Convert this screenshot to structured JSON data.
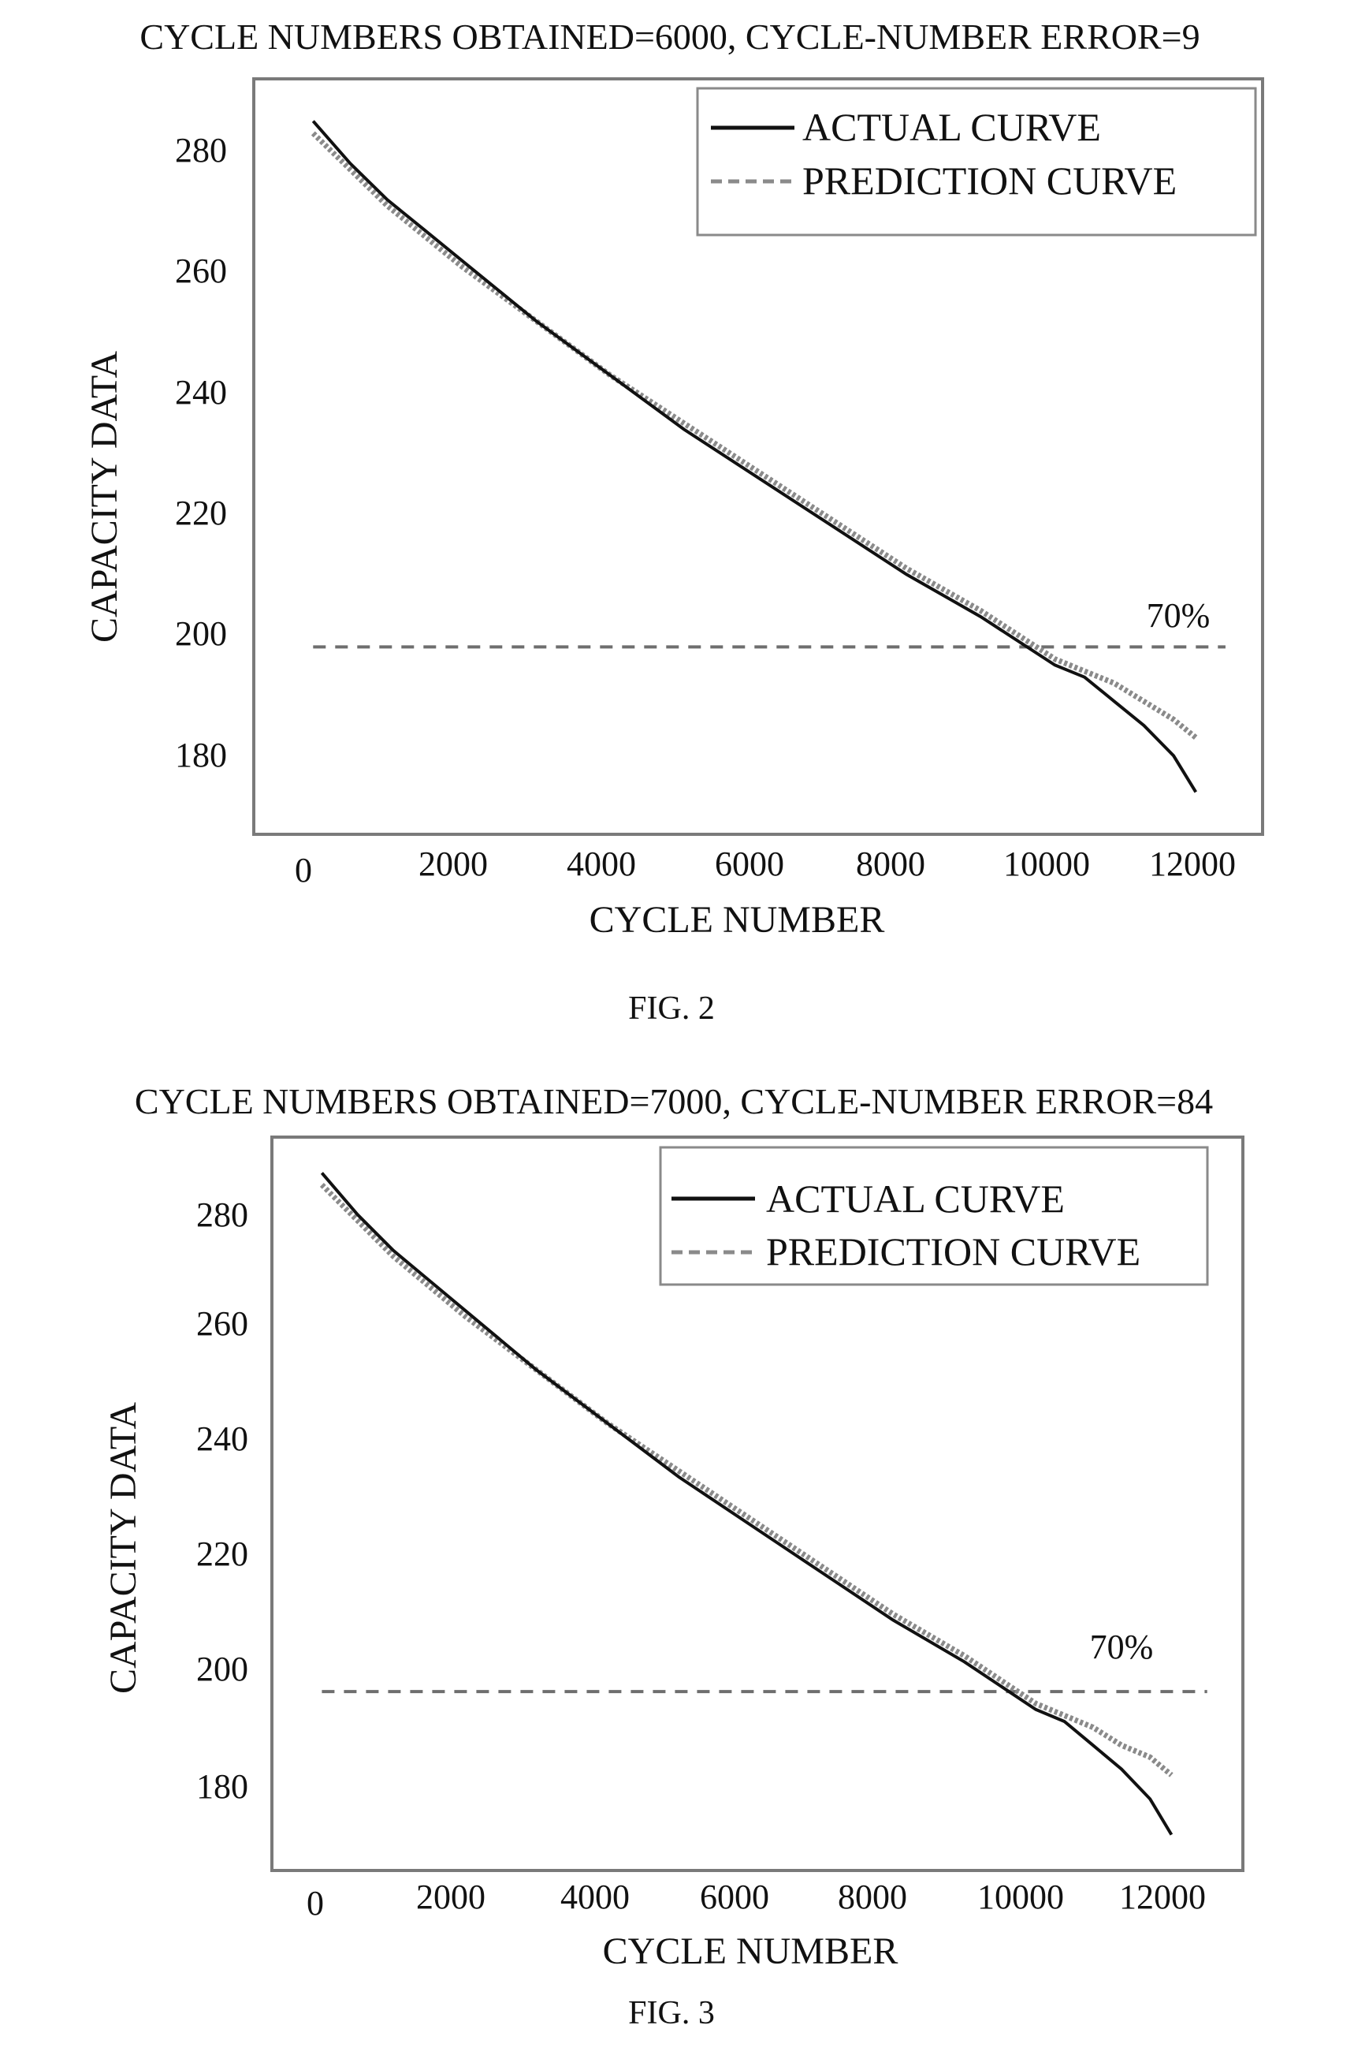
{
  "colors": {
    "axis": "#7a7a7a",
    "actual": "#111111",
    "prediction": "#8a8a8a",
    "threshold": "#6e6e6e"
  },
  "figures": [
    {
      "caption": "FIG. 2",
      "chart_data": {
        "type": "line",
        "title": "CYCLE NUMBERS OBTAINED=6000, CYCLE-NUMBER ERROR=9",
        "xlabel": "CYCLE NUMBER",
        "ylabel": "CAPACITY DATA",
        "xlim": [
          -800,
          12800
        ],
        "ylim": [
          165,
          290
        ],
        "xticks": [
          0,
          2000,
          4000,
          6000,
          8000,
          10000,
          12000
        ],
        "xtick_labels": [
          "0",
          "2000",
          "4000",
          "6000",
          "8000",
          "10000",
          "12000"
        ],
        "yticks": [
          180,
          200,
          220,
          240,
          260,
          280
        ],
        "ytick_labels": [
          "180",
          "200",
          "220",
          "240",
          "260",
          "280"
        ],
        "legend": [
          "ACTUAL CURVE",
          "PREDICTION CURVE"
        ],
        "legend_position": "top-right",
        "threshold": {
          "y": 196,
          "x_start": 0,
          "x_end": 12300,
          "label": "70%"
        },
        "series": [
          {
            "name": "ACTUAL CURVE",
            "style": "solid",
            "x": [
              0,
              500,
              1000,
              1500,
              2000,
              3000,
              4000,
              5000,
              6000,
              7000,
              8000,
              9000,
              10000,
              10400,
              10800,
              11200,
              11600,
              11900
            ],
            "y": [
              283,
              276,
              270,
              265,
              260,
              250,
              241,
              232,
              224,
              216,
              208,
              201,
              193,
              191,
              187,
              183,
              178,
              172
            ]
          },
          {
            "name": "PREDICTION CURVE",
            "style": "dashed",
            "x": [
              0,
              500,
              1000,
              1500,
              2000,
              3000,
              4000,
              5000,
              6000,
              7000,
              8000,
              9000,
              10000,
              10400,
              10800,
              11200,
              11600,
              11900
            ],
            "y": [
              281,
              275,
              269,
              264,
              259,
              250,
              241,
              233,
              225,
              217,
              209,
              202,
              194,
              192,
              190,
              187,
              184,
              181
            ]
          }
        ]
      }
    },
    {
      "caption": "FIG. 3",
      "chart_data": {
        "type": "line",
        "title": "CYCLE NUMBERS OBTAINED=7000, CYCLE-NUMBER ERROR=84",
        "xlabel": "CYCLE NUMBER",
        "ylabel": "CAPACITY DATA",
        "xlim": [
          -700,
          12900
        ],
        "ylim": [
          166,
          289
        ],
        "xticks": [
          0,
          2000,
          4000,
          6000,
          8000,
          10000,
          12000
        ],
        "xtick_labels": [
          "0",
          "2000",
          "4000",
          "6000",
          "8000",
          "10000",
          "12000"
        ],
        "yticks": [
          180,
          200,
          220,
          240,
          260,
          280
        ],
        "ytick_labels": [
          "180",
          "200",
          "220",
          "240",
          "260",
          "280"
        ],
        "legend": [
          "ACTUAL CURVE",
          "PREDICTION CURVE"
        ],
        "legend_position": "top-right",
        "threshold": {
          "y": 196,
          "x_start": 0,
          "x_end": 12400,
          "label": "70%"
        },
        "series": [
          {
            "name": "ACTUAL CURVE",
            "style": "solid",
            "x": [
              0,
              500,
              1000,
              1500,
              2000,
              3000,
              4000,
              5000,
              6000,
              7000,
              8000,
              9000,
              10000,
              10400,
              10800,
              11200,
              11600,
              11900
            ],
            "y": [
              283,
              276,
              270,
              265,
              260,
              250,
              241,
              232,
              224,
              216,
              208,
              201,
              193,
              191,
              187,
              183,
              178,
              172
            ]
          },
          {
            "name": "PREDICTION CURVE",
            "style": "dashed",
            "x": [
              0,
              500,
              1000,
              1500,
              2000,
              3000,
              4000,
              5000,
              6000,
              7000,
              8000,
              9000,
              10000,
              10400,
              10800,
              11200,
              11600,
              11900
            ],
            "y": [
              281,
              275,
              269,
              264,
              259,
              250,
              241,
              233,
              225,
              217,
              209,
              202,
              194,
              192,
              190,
              187,
              185,
              182
            ]
          }
        ]
      }
    }
  ]
}
